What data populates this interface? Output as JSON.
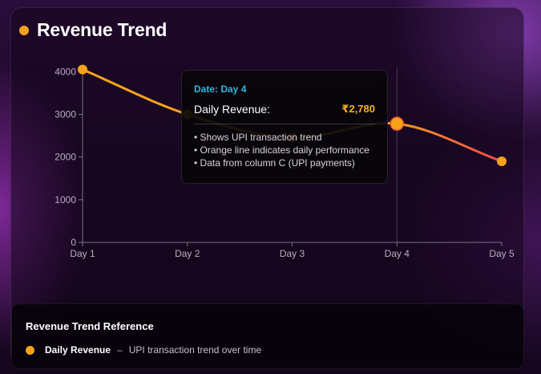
{
  "header": {
    "title": "Revenue Trend"
  },
  "chart_data": {
    "type": "line",
    "categories": [
      "Day 1",
      "Day 2",
      "Day 3",
      "Day 4",
      "Day 5"
    ],
    "series": [
      {
        "name": "Daily Revenue",
        "values": [
          4050,
          3000,
          2450,
          2780,
          1900
        ],
        "color_start": "#f7a21b",
        "color_end": "#ef4a4a"
      }
    ],
    "yticks": [
      0,
      1000,
      2000,
      3000,
      4000
    ],
    "ylim": [
      0,
      4100
    ],
    "grid": false,
    "active_index": 3
  },
  "tooltip": {
    "date_label": "Date: Day 4",
    "metric_label": "Daily Revenue:",
    "metric_value": "₹2,780",
    "notes": [
      "• Shows UPI transaction trend",
      "• Orange line indicates daily performance",
      "• Data from column C (UPI payments)"
    ]
  },
  "reference": {
    "title": "Revenue Trend Reference",
    "item_name": "Daily Revenue",
    "separator": "–",
    "item_desc": "UPI transaction trend over time"
  },
  "colors": {
    "accent": "#f7a21b",
    "line_end": "#ef4a4a",
    "tooltip_date": "#29b8e3",
    "tooltip_value": "#f7b21b"
  }
}
